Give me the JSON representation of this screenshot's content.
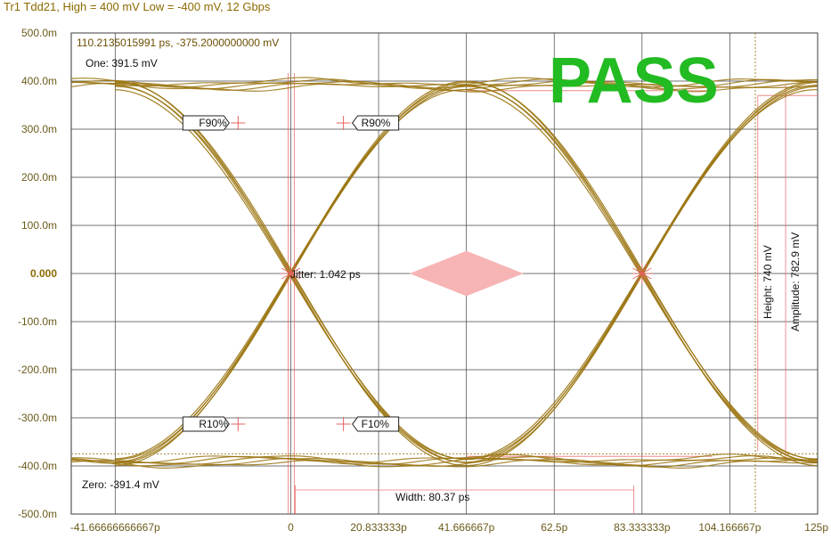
{
  "header": {
    "title": "Tr1 Tdd21, High = 400 mV Low = -400 mV, 12 Gbps"
  },
  "cursor_readout": "110.2135015991 ps, -375.2000000000 mV",
  "status": {
    "text": "PASS",
    "color": "#22bb22"
  },
  "colors": {
    "trace": "#9a7410",
    "grid": "#222222",
    "marker": "#e86060",
    "eye_mask": "#f7b4b4"
  },
  "chart_data": {
    "type": "line",
    "title": "",
    "xlabel": "",
    "ylabel": "",
    "x_unit": "ps",
    "y_unit": "mV",
    "xlim": [
      -52.08333333,
      125
    ],
    "ylim": [
      -500,
      500
    ],
    "grid": true,
    "x_ticks": [
      {
        "value": -41.66666666667,
        "label": "-41.66666666667p"
      },
      {
        "value": 0,
        "label": "0"
      },
      {
        "value": 20.833333,
        "label": "20.833333p"
      },
      {
        "value": 41.666667,
        "label": "41.666667p"
      },
      {
        "value": 62.5,
        "label": "62.5p"
      },
      {
        "value": 83.333333,
        "label": "83.333333p"
      },
      {
        "value": 104.166667,
        "label": "104.166667p"
      },
      {
        "value": 125,
        "label": "125p"
      }
    ],
    "y_ticks": [
      {
        "value": 500,
        "label": "500.0m"
      },
      {
        "value": 400,
        "label": "400.0m"
      },
      {
        "value": 300,
        "label": "300.0m"
      },
      {
        "value": 200,
        "label": "200.0m"
      },
      {
        "value": 100,
        "label": "100.0m"
      },
      {
        "value": 0,
        "label": "0.000"
      },
      {
        "value": -100,
        "label": "-100.0m"
      },
      {
        "value": -200,
        "label": "-200.0m"
      },
      {
        "value": -300,
        "label": "-300.0m"
      },
      {
        "value": -400,
        "label": "-400.0m"
      },
      {
        "value": -500,
        "label": "-500.0m"
      }
    ],
    "unit_interval_ps": 83.333333,
    "crossings_ps": [
      0,
      83.333333
    ],
    "high_level_mv": 391.5,
    "low_level_mv": -391.4,
    "measurements": {
      "one_label": "One: 391.5 mV",
      "zero_label": "Zero: -391.4 mV",
      "jitter_label": "Jitter: 1.042 ps",
      "width_label": "Width: 80.37 ps",
      "height_label": "Height: 740 mV",
      "amplitude_label": "Amplitude: 782.9 mV"
    },
    "markers": [
      {
        "label": "F90%",
        "x": -12.5,
        "y": 313,
        "side": "left"
      },
      {
        "label": "R90%",
        "x": 12.5,
        "y": 313,
        "side": "right"
      },
      {
        "label": "R10%",
        "x": -12.5,
        "y": -313,
        "side": "left"
      },
      {
        "label": "F10%",
        "x": 12.5,
        "y": -313,
        "side": "right"
      }
    ],
    "mask": {
      "center_x": 41.666667,
      "center_y": 0,
      "half_width": 13.5,
      "half_height": 47
    },
    "cursor": {
      "x": 110.2135015991,
      "y": -375.2
    }
  }
}
